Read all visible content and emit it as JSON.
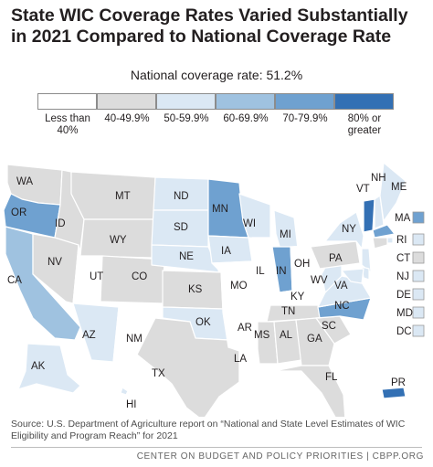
{
  "title": "State WIC Coverage Rates Varied Substantially in 2021 Compared to National Coverage Rate",
  "national_rate_label": "National coverage rate: 51.2%",
  "legend": [
    {
      "label": "Less than 40%",
      "color": "#ffffff"
    },
    {
      "label": "40-49.9%",
      "color": "#dcdcdc"
    },
    {
      "label": "50-59.9%",
      "color": "#dbe8f4"
    },
    {
      "label": "60-69.9%",
      "color": "#9fc2e0"
    },
    {
      "label": "70-79.9%",
      "color": "#6fa1d0"
    },
    {
      "label": "80% or greater",
      "color": "#3370b4"
    }
  ],
  "states": [
    {
      "abbr": "WA",
      "bin": 1
    },
    {
      "abbr": "OR",
      "bin": 4
    },
    {
      "abbr": "CA",
      "bin": 3
    },
    {
      "abbr": "ID",
      "bin": 1
    },
    {
      "abbr": "NV",
      "bin": 1
    },
    {
      "abbr": "MT",
      "bin": 1
    },
    {
      "abbr": "WY",
      "bin": 1
    },
    {
      "abbr": "UT",
      "bin": 0
    },
    {
      "abbr": "AZ",
      "bin": 2
    },
    {
      "abbr": "CO",
      "bin": 1
    },
    {
      "abbr": "NM",
      "bin": 0
    },
    {
      "abbr": "ND",
      "bin": 2
    },
    {
      "abbr": "SD",
      "bin": 2
    },
    {
      "abbr": "NE",
      "bin": 2
    },
    {
      "abbr": "KS",
      "bin": 1
    },
    {
      "abbr": "OK",
      "bin": 2
    },
    {
      "abbr": "TX",
      "bin": 1
    },
    {
      "abbr": "MN",
      "bin": 4
    },
    {
      "abbr": "IA",
      "bin": 2
    },
    {
      "abbr": "MO",
      "bin": 0
    },
    {
      "abbr": "AR",
      "bin": 0
    },
    {
      "abbr": "LA",
      "bin": 0
    },
    {
      "abbr": "WI",
      "bin": 2
    },
    {
      "abbr": "IL",
      "bin": 0
    },
    {
      "abbr": "MI",
      "bin": 2
    },
    {
      "abbr": "IN",
      "bin": 4
    },
    {
      "abbr": "OH",
      "bin": 0
    },
    {
      "abbr": "KY",
      "bin": 0
    },
    {
      "abbr": "TN",
      "bin": 1
    },
    {
      "abbr": "MS",
      "bin": 1
    },
    {
      "abbr": "AL",
      "bin": 1
    },
    {
      "abbr": "GA",
      "bin": 1
    },
    {
      "abbr": "FL",
      "bin": 1
    },
    {
      "abbr": "SC",
      "bin": 1
    },
    {
      "abbr": "NC",
      "bin": 4
    },
    {
      "abbr": "VA",
      "bin": 2
    },
    {
      "abbr": "WV",
      "bin": 2
    },
    {
      "abbr": "PA",
      "bin": 1
    },
    {
      "abbr": "NY",
      "bin": 2
    },
    {
      "abbr": "VT",
      "bin": 5
    },
    {
      "abbr": "NH",
      "bin": 2
    },
    {
      "abbr": "ME",
      "bin": 2
    },
    {
      "abbr": "MA",
      "bin": 4
    },
    {
      "abbr": "RI",
      "bin": 2
    },
    {
      "abbr": "CT",
      "bin": 1
    },
    {
      "abbr": "NJ",
      "bin": 2
    },
    {
      "abbr": "DE",
      "bin": 2
    },
    {
      "abbr": "MD",
      "bin": 2
    },
    {
      "abbr": "DC",
      "bin": 2
    },
    {
      "abbr": "AK",
      "bin": 2
    },
    {
      "abbr": "HI",
      "bin": 2
    },
    {
      "abbr": "PR",
      "bin": 5
    }
  ],
  "source": "Source: U.S. Department of Agriculture report on “National and State Level Estimates of WIC Eligibility and Program Reach” for 2021",
  "footer": "CENTER ON BUDGET AND POLICY PRIORITIES | CBPP.ORG"
}
